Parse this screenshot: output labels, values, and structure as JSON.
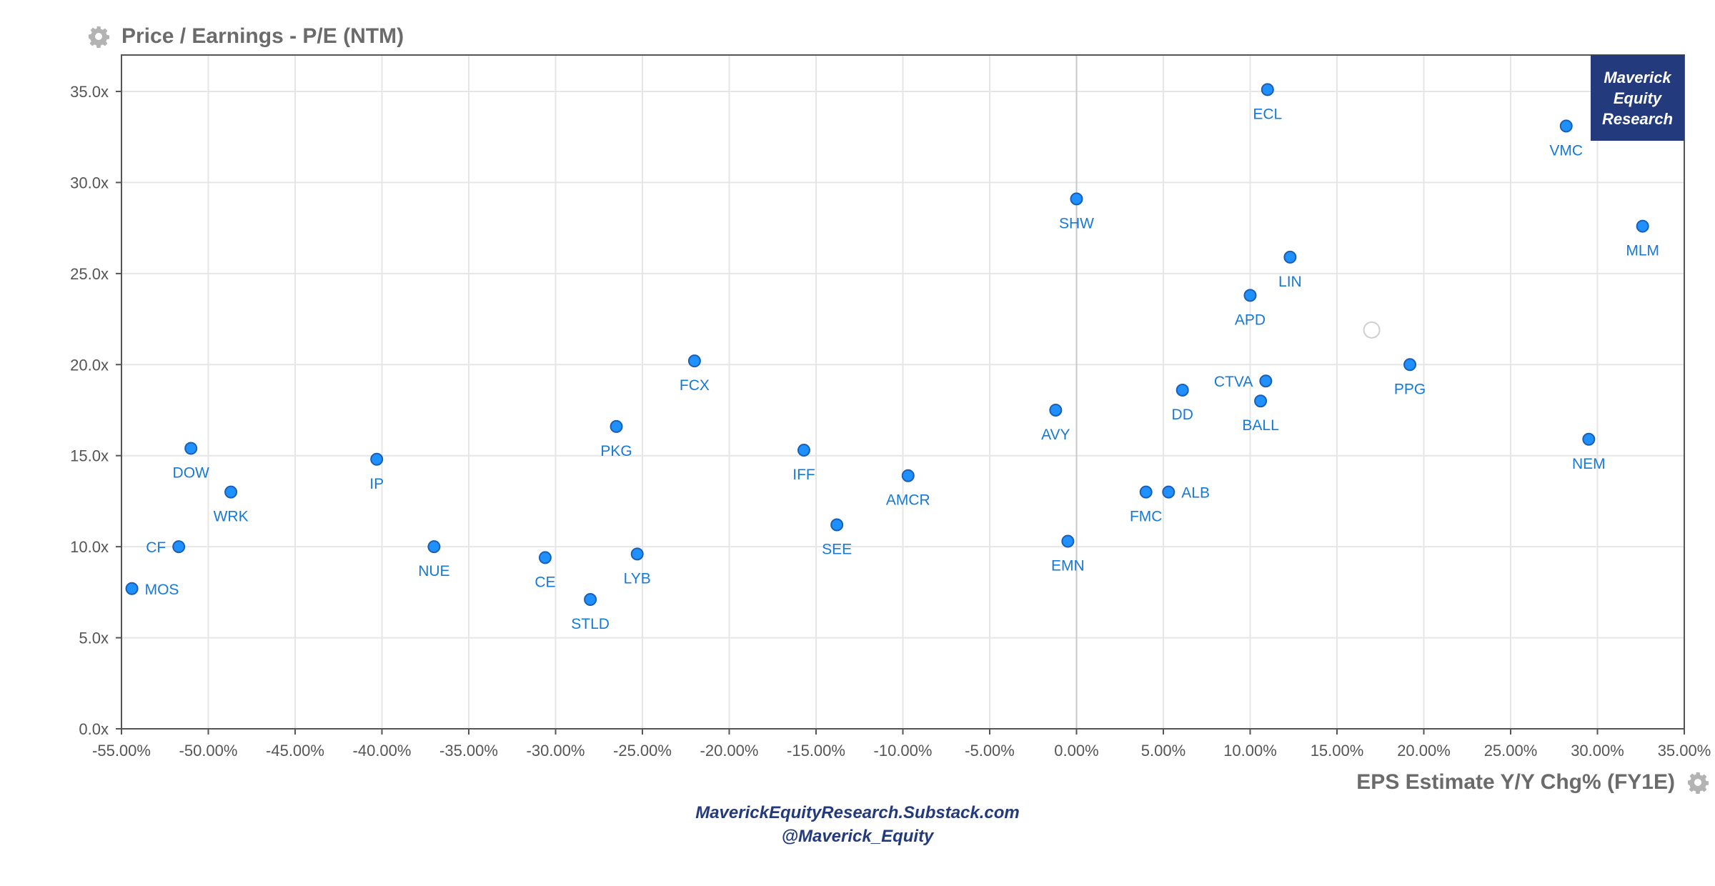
{
  "chart_data": {
    "type": "scatter",
    "title": "",
    "ylabel": "Price / Earnings - P/E (NTM)",
    "xlabel": "EPS Estimate Y/Y Chg% (FY1E)",
    "xlim": [
      -55,
      35
    ],
    "ylim": [
      0,
      37
    ],
    "x_ticks": [
      -55,
      -50,
      -45,
      -40,
      -35,
      -30,
      -25,
      -20,
      -15,
      -10,
      -5,
      0,
      5,
      10,
      15,
      20,
      25,
      30,
      35
    ],
    "x_tick_labels": [
      "-55.00%",
      "-50.00%",
      "-45.00%",
      "-40.00%",
      "-35.00%",
      "-30.00%",
      "-25.00%",
      "-20.00%",
      "-15.00%",
      "-10.00%",
      "-5.00%",
      "0.00%",
      "5.00%",
      "10.00%",
      "15.00%",
      "20.00%",
      "25.00%",
      "30.00%",
      "35.00%"
    ],
    "y_ticks": [
      0,
      5,
      10,
      15,
      20,
      25,
      30,
      35
    ],
    "y_tick_labels": [
      "0.0x",
      "5.0x",
      "10.0x",
      "15.0x",
      "20.0x",
      "25.0x",
      "30.0x",
      "35.0x"
    ],
    "grid": true,
    "point_color": "#1e90ff",
    "point_edge_color": "#1a5fb4",
    "label_color": "#1679d8",
    "points": [
      {
        "label": "ECL",
        "x": 11.0,
        "y": 35.1,
        "pos": "below"
      },
      {
        "label": "VMC",
        "x": 28.2,
        "y": 33.1,
        "pos": "below"
      },
      {
        "label": "SHW",
        "x": 0.0,
        "y": 29.1,
        "pos": "below"
      },
      {
        "label": "MLM",
        "x": 32.6,
        "y": 27.6,
        "pos": "below"
      },
      {
        "label": "LIN",
        "x": 12.3,
        "y": 25.9,
        "pos": "below"
      },
      {
        "label": "APD",
        "x": 10.0,
        "y": 23.8,
        "pos": "below"
      },
      {
        "label": "FCX",
        "x": -22.0,
        "y": 20.2,
        "pos": "below"
      },
      {
        "label": "PPG",
        "x": 19.2,
        "y": 20.0,
        "pos": "below"
      },
      {
        "label": "CTVA",
        "x": 10.9,
        "y": 19.1,
        "pos": "left"
      },
      {
        "label": "DD",
        "x": 6.1,
        "y": 18.6,
        "pos": "below"
      },
      {
        "label": "BALL",
        "x": 10.6,
        "y": 18.0,
        "pos": "below"
      },
      {
        "label": "AVY",
        "x": -1.2,
        "y": 17.5,
        "pos": "below"
      },
      {
        "label": "PKG",
        "x": -26.5,
        "y": 16.6,
        "pos": "below"
      },
      {
        "label": "NEM",
        "x": 29.5,
        "y": 15.9,
        "pos": "below"
      },
      {
        "label": "DOW",
        "x": -51.0,
        "y": 15.4,
        "pos": "below"
      },
      {
        "label": "IFF",
        "x": -15.7,
        "y": 15.3,
        "pos": "below"
      },
      {
        "label": "IP",
        "x": -40.3,
        "y": 14.8,
        "pos": "below"
      },
      {
        "label": "AMCR",
        "x": -9.7,
        "y": 13.9,
        "pos": "below"
      },
      {
        "label": "ALB",
        "x": 5.3,
        "y": 13.0,
        "pos": "right"
      },
      {
        "label": "FMC",
        "x": 4.0,
        "y": 13.0,
        "pos": "below"
      },
      {
        "label": "WRK",
        "x": -48.7,
        "y": 13.0,
        "pos": "below"
      },
      {
        "label": "SEE",
        "x": -13.8,
        "y": 11.2,
        "pos": "below"
      },
      {
        "label": "EMN",
        "x": -0.5,
        "y": 10.3,
        "pos": "below"
      },
      {
        "label": "CF",
        "x": -51.7,
        "y": 10.0,
        "pos": "left"
      },
      {
        "label": "NUE",
        "x": -37.0,
        "y": 10.0,
        "pos": "below"
      },
      {
        "label": "LYB",
        "x": -25.3,
        "y": 9.6,
        "pos": "below"
      },
      {
        "label": "CE",
        "x": -30.6,
        "y": 9.4,
        "pos": "below"
      },
      {
        "label": "MOS",
        "x": -54.4,
        "y": 7.7,
        "pos": "right"
      },
      {
        "label": "STLD",
        "x": -28.0,
        "y": 7.1,
        "pos": "below"
      }
    ],
    "hollow_points": [
      {
        "x": 17.0,
        "y": 21.9
      }
    ]
  },
  "branding": {
    "box_lines": [
      "Maverick",
      "Equity",
      "Research"
    ],
    "box_color": "#233a7c"
  },
  "footer": {
    "site": "MaverickEquityResearch.Substack.com",
    "handle": "@Maverick_Equity"
  },
  "icons": {
    "ylabel_icon": "gear-icon",
    "xlabel_icon": "gear-icon"
  }
}
